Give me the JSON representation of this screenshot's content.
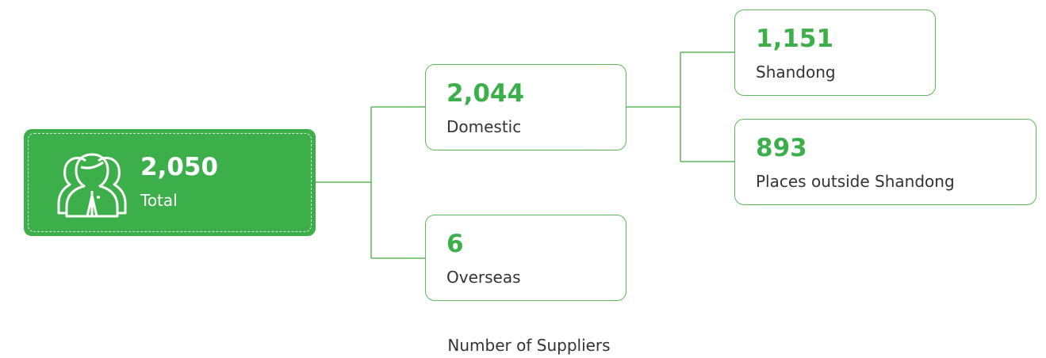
{
  "title": "Number of Suppliers",
  "nodes": [
    {
      "value": "2,050",
      "label": "Total"
    },
    {
      "value": "2,044",
      "label": "Domestic"
    },
    {
      "value": "6",
      "label": "Overseas"
    },
    {
      "value": "1,151",
      "label": "Shandong"
    },
    {
      "value": "893",
      "label": "Places outside Shandong"
    }
  ]
}
